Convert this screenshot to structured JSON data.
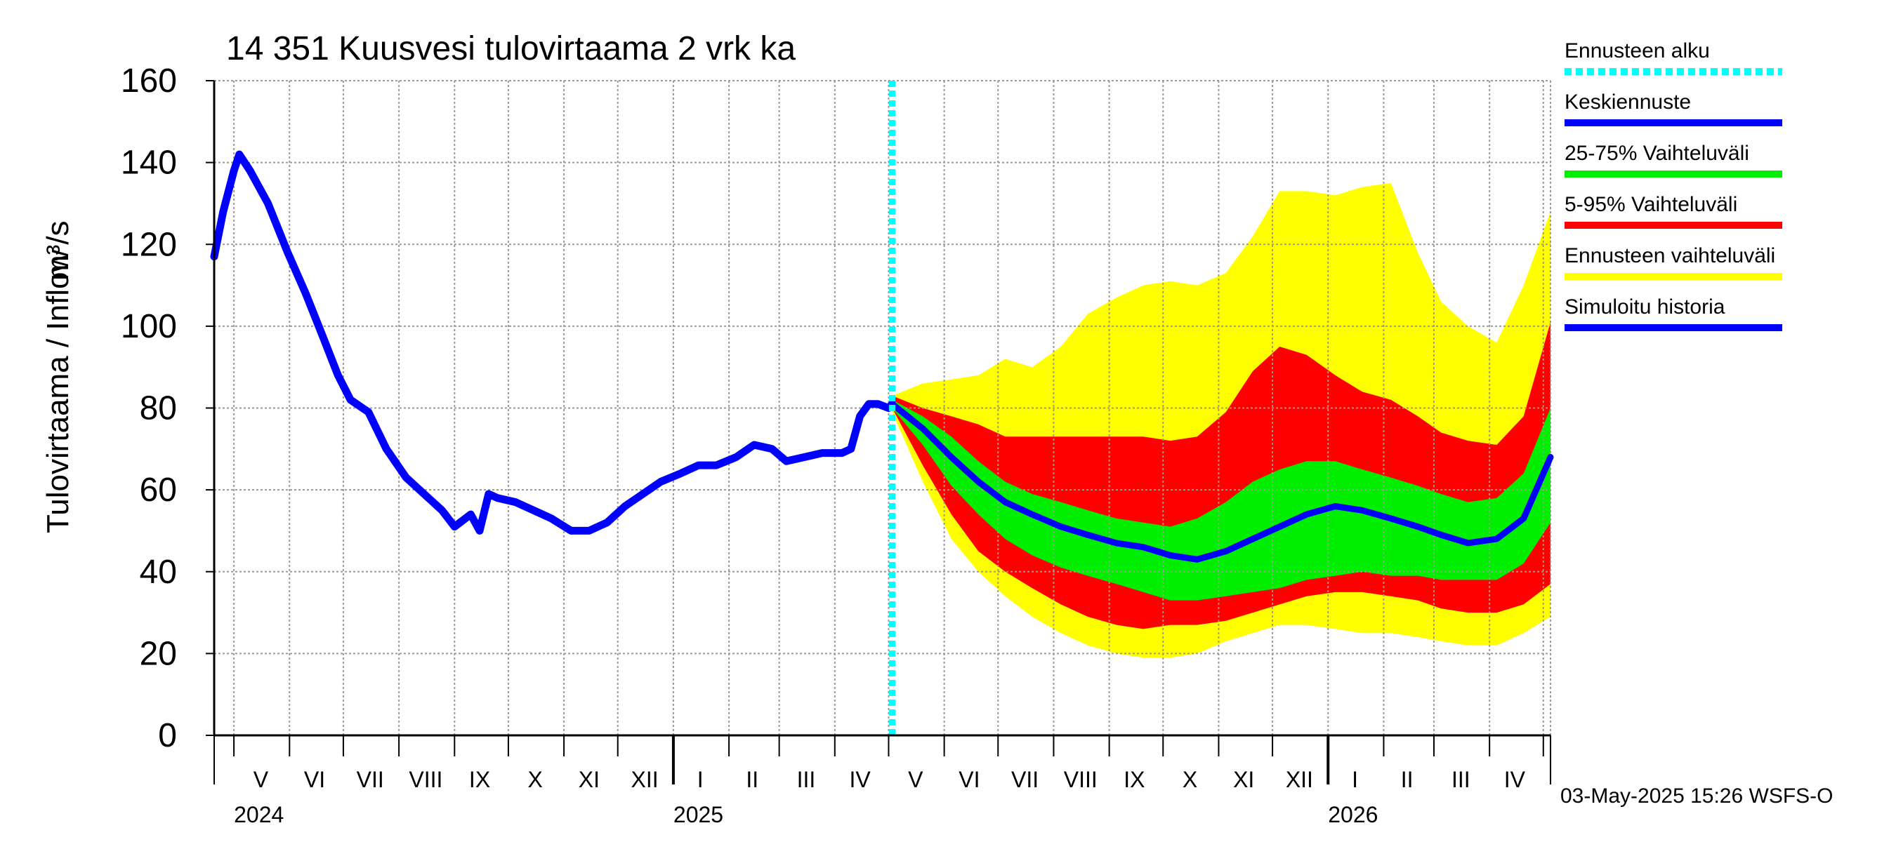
{
  "chart_data": {
    "type": "area",
    "title": "14 351 Kuusvesi tulovirtaama 2 vrk ka",
    "ylabel": "Tulovirtaama / Inflow",
    "yunit": "m³/s",
    "ylim": [
      0,
      160
    ],
    "yticks": [
      "0",
      "20",
      "40",
      "60",
      "80",
      "100",
      "120",
      "140",
      "160"
    ],
    "xlim": [
      "2024-04-20",
      "2026-05-05"
    ],
    "grid": true,
    "month_labels": [
      {
        "label": "V",
        "date": "2024-05-16"
      },
      {
        "label": "VI",
        "date": "2024-06-15"
      },
      {
        "label": "VII",
        "date": "2024-07-16"
      },
      {
        "label": "VIII",
        "date": "2024-08-16"
      },
      {
        "label": "IX",
        "date": "2024-09-15"
      },
      {
        "label": "X",
        "date": "2024-10-16"
      },
      {
        "label": "XI",
        "date": "2024-11-15"
      },
      {
        "label": "XII",
        "date": "2024-12-16"
      },
      {
        "label": "I",
        "date": "2025-01-16"
      },
      {
        "label": "II",
        "date": "2025-02-14"
      },
      {
        "label": "III",
        "date": "2025-03-16"
      },
      {
        "label": "IV",
        "date": "2025-04-15"
      },
      {
        "label": "V",
        "date": "2025-05-16"
      },
      {
        "label": "VI",
        "date": "2025-06-15"
      },
      {
        "label": "VII",
        "date": "2025-07-16"
      },
      {
        "label": "VIII",
        "date": "2025-08-16"
      },
      {
        "label": "IX",
        "date": "2025-09-15"
      },
      {
        "label": "X",
        "date": "2025-10-16"
      },
      {
        "label": "XI",
        "date": "2025-11-15"
      },
      {
        "label": "XII",
        "date": "2025-12-16"
      },
      {
        "label": "I",
        "date": "2026-01-16"
      },
      {
        "label": "II",
        "date": "2026-02-14"
      },
      {
        "label": "III",
        "date": "2026-03-16"
      },
      {
        "label": "IV",
        "date": "2026-04-15"
      }
    ],
    "month_boundaries": [
      "2024-05-01",
      "2024-06-01",
      "2024-07-01",
      "2024-08-01",
      "2024-09-01",
      "2024-10-01",
      "2024-11-01",
      "2024-12-01",
      "2025-01-01",
      "2025-02-01",
      "2025-03-01",
      "2025-04-01",
      "2025-05-01",
      "2025-06-01",
      "2025-07-01",
      "2025-08-01",
      "2025-09-01",
      "2025-10-01",
      "2025-11-01",
      "2025-12-01",
      "2026-01-01",
      "2026-02-01",
      "2026-03-01",
      "2026-04-01",
      "2026-05-01"
    ],
    "year_labels": [
      {
        "label": "2024",
        "date": "2024-05-01"
      },
      {
        "label": "2025",
        "date": "2025-01-01"
      },
      {
        "label": "2026",
        "date": "2026-01-01"
      }
    ],
    "forecast_start": "2025-05-03",
    "series": [
      {
        "name": "Simuloitu historia",
        "color": "#0000ff",
        "x": [
          "2024-04-20",
          "2024-04-25",
          "2024-05-01",
          "2024-05-04",
          "2024-05-10",
          "2024-05-20",
          "2024-05-31",
          "2024-06-10",
          "2024-06-20",
          "2024-06-28",
          "2024-07-05",
          "2024-07-15",
          "2024-07-25",
          "2024-08-05",
          "2024-08-15",
          "2024-08-25",
          "2024-09-01",
          "2024-09-10",
          "2024-09-15",
          "2024-09-20",
          "2024-09-25",
          "2024-10-05",
          "2024-10-15",
          "2024-10-25",
          "2024-11-05",
          "2024-11-15",
          "2024-11-25",
          "2024-12-05",
          "2024-12-15",
          "2024-12-25",
          "2025-01-05",
          "2025-01-15",
          "2025-01-25",
          "2025-02-05",
          "2025-02-15",
          "2025-02-25",
          "2025-03-05",
          "2025-03-15",
          "2025-03-25",
          "2025-04-05",
          "2025-04-10",
          "2025-04-15",
          "2025-04-20",
          "2025-04-25",
          "2025-05-01",
          "2025-05-03"
        ],
        "y": [
          117,
          128,
          138,
          142,
          138,
          130,
          118,
          108,
          97,
          88,
          82,
          79,
          70,
          63,
          59,
          55,
          51,
          54,
          50,
          59,
          58,
          57,
          55,
          53,
          50,
          50,
          52,
          56,
          59,
          62,
          64,
          66,
          66,
          68,
          71,
          70,
          67,
          68,
          69,
          69,
          70,
          78,
          81,
          81,
          80,
          81
        ]
      },
      {
        "name": "Keskiennuste",
        "color": "#0000ff",
        "x": [
          "2025-05-03",
          "2025-05-20",
          "2025-06-05",
          "2025-06-20",
          "2025-07-05",
          "2025-07-20",
          "2025-08-05",
          "2025-08-20",
          "2025-09-05",
          "2025-09-20",
          "2025-10-05",
          "2025-10-20",
          "2025-11-05",
          "2025-11-20",
          "2025-12-05",
          "2025-12-20",
          "2026-01-05",
          "2026-01-20",
          "2026-02-05",
          "2026-02-20",
          "2026-03-05",
          "2026-03-20",
          "2026-04-05",
          "2026-04-20",
          "2026-05-05"
        ],
        "y": [
          81,
          75,
          68,
          62,
          57,
          54,
          51,
          49,
          47,
          46,
          44,
          43,
          45,
          48,
          51,
          54,
          56,
          55,
          53,
          51,
          49,
          47,
          48,
          53,
          68
        ]
      },
      {
        "name": "25-75% Vaihteluväli",
        "color": "#00ee00",
        "x": [
          "2025-05-03",
          "2025-05-20",
          "2025-06-05",
          "2025-06-20",
          "2025-07-05",
          "2025-07-20",
          "2025-08-05",
          "2025-08-20",
          "2025-09-05",
          "2025-09-20",
          "2025-10-05",
          "2025-10-20",
          "2025-11-05",
          "2025-11-20",
          "2025-12-05",
          "2025-12-20",
          "2026-01-05",
          "2026-01-20",
          "2026-02-05",
          "2026-02-20",
          "2026-03-05",
          "2026-03-20",
          "2026-04-05",
          "2026-04-20",
          "2026-05-05"
        ],
        "low": [
          80,
          71,
          61,
          54,
          48,
          44,
          41,
          39,
          37,
          35,
          33,
          33,
          34,
          35,
          36,
          38,
          39,
          40,
          39,
          39,
          38,
          38,
          38,
          42,
          52
        ],
        "high": [
          82,
          78,
          73,
          67,
          62,
          59,
          57,
          55,
          53,
          52,
          51,
          53,
          57,
          62,
          65,
          67,
          67,
          65,
          63,
          61,
          59,
          57,
          58,
          64,
          80
        ]
      },
      {
        "name": "5-95% Vaihteluväli",
        "color": "#ff0000",
        "x": [
          "2025-05-03",
          "2025-05-20",
          "2025-06-05",
          "2025-06-20",
          "2025-07-05",
          "2025-07-20",
          "2025-08-05",
          "2025-08-20",
          "2025-09-05",
          "2025-09-20",
          "2025-10-05",
          "2025-10-20",
          "2025-11-05",
          "2025-11-20",
          "2025-12-05",
          "2025-12-20",
          "2026-01-05",
          "2026-01-20",
          "2026-02-05",
          "2026-02-20",
          "2026-03-05",
          "2026-03-20",
          "2026-04-05",
          "2026-04-20",
          "2026-05-05"
        ],
        "low": [
          80,
          66,
          54,
          45,
          40,
          36,
          32,
          29,
          27,
          26,
          27,
          27,
          28,
          30,
          32,
          34,
          35,
          35,
          34,
          33,
          31,
          30,
          30,
          32,
          37
        ],
        "high": [
          83,
          80,
          78,
          76,
          73,
          73,
          73,
          73,
          73,
          73,
          72,
          73,
          79,
          89,
          95,
          93,
          88,
          84,
          82,
          78,
          74,
          72,
          71,
          78,
          101
        ]
      },
      {
        "name": "Ennusteen vaihteluväli",
        "color": "#ffff00",
        "x": [
          "2025-05-03",
          "2025-05-20",
          "2025-06-05",
          "2025-06-20",
          "2025-07-05",
          "2025-07-20",
          "2025-08-05",
          "2025-08-20",
          "2025-09-05",
          "2025-09-20",
          "2025-10-05",
          "2025-10-20",
          "2025-11-05",
          "2025-11-20",
          "2025-12-05",
          "2025-12-20",
          "2026-01-05",
          "2026-01-20",
          "2026-02-05",
          "2026-02-20",
          "2026-03-05",
          "2026-03-20",
          "2026-04-05",
          "2026-04-20",
          "2026-05-05"
        ],
        "low": [
          79,
          62,
          48,
          40,
          34,
          29,
          25,
          22,
          20,
          19,
          19,
          20,
          23,
          25,
          27,
          27,
          26,
          25,
          25,
          24,
          23,
          22,
          22,
          25,
          29
        ],
        "high": [
          83,
          86,
          87,
          88,
          92,
          90,
          95,
          103,
          107,
          110,
          111,
          110,
          113,
          122,
          133,
          133,
          132,
          134,
          135,
          118,
          106,
          100,
          96,
          110,
          128
        ]
      }
    ]
  },
  "legend": [
    {
      "label": "Ennusteen alku",
      "color": "#00ffff",
      "style": "dotted"
    },
    {
      "label": "Keskiennuste",
      "color": "#0000ff",
      "style": "solid"
    },
    {
      "label": "25-75% Vaihteluväli",
      "color": "#00ee00",
      "style": "solid"
    },
    {
      "label": "5-95% Vaihteluväli",
      "color": "#ff0000",
      "style": "solid"
    },
    {
      "label": "Ennusteen vaihteluväli",
      "color": "#ffff00",
      "style": "solid"
    },
    {
      "label": "Simuloitu historia",
      "color": "#0000ff",
      "style": "solid"
    }
  ],
  "footer": "03-May-2025 15:26 WSFS-O"
}
